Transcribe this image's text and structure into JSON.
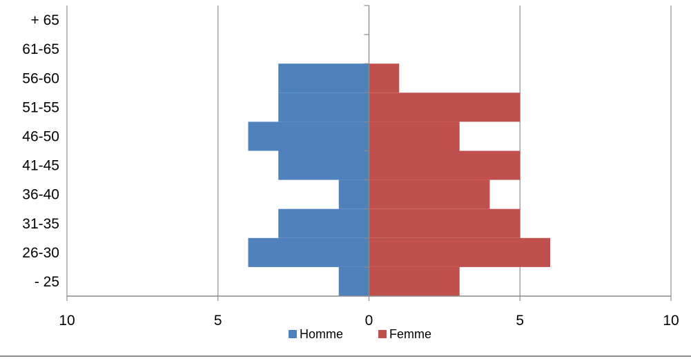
{
  "chart_data": {
    "type": "bar",
    "orientation": "horizontal",
    "layout": "population-pyramid",
    "categories": [
      "- 25",
      "26-30",
      "31-35",
      "36-40",
      "41-45",
      "46-50",
      "51-55",
      "56-60",
      "61-65",
      "+ 65"
    ],
    "series": [
      {
        "name": "Homme",
        "side": "left",
        "color": "#4F81BD",
        "values": [
          1,
          4,
          3,
          1,
          3,
          4,
          3,
          3,
          0,
          0
        ]
      },
      {
        "name": "Femme",
        "side": "right",
        "color": "#C0504D",
        "values": [
          3,
          6,
          5,
          4,
          5,
          3,
          5,
          1,
          0,
          0
        ]
      }
    ],
    "x_ticks": [
      "10",
      "5",
      "0",
      "5",
      "10"
    ],
    "xlim": [
      -10,
      10
    ],
    "grid": "vertical",
    "legend": "bottom"
  }
}
